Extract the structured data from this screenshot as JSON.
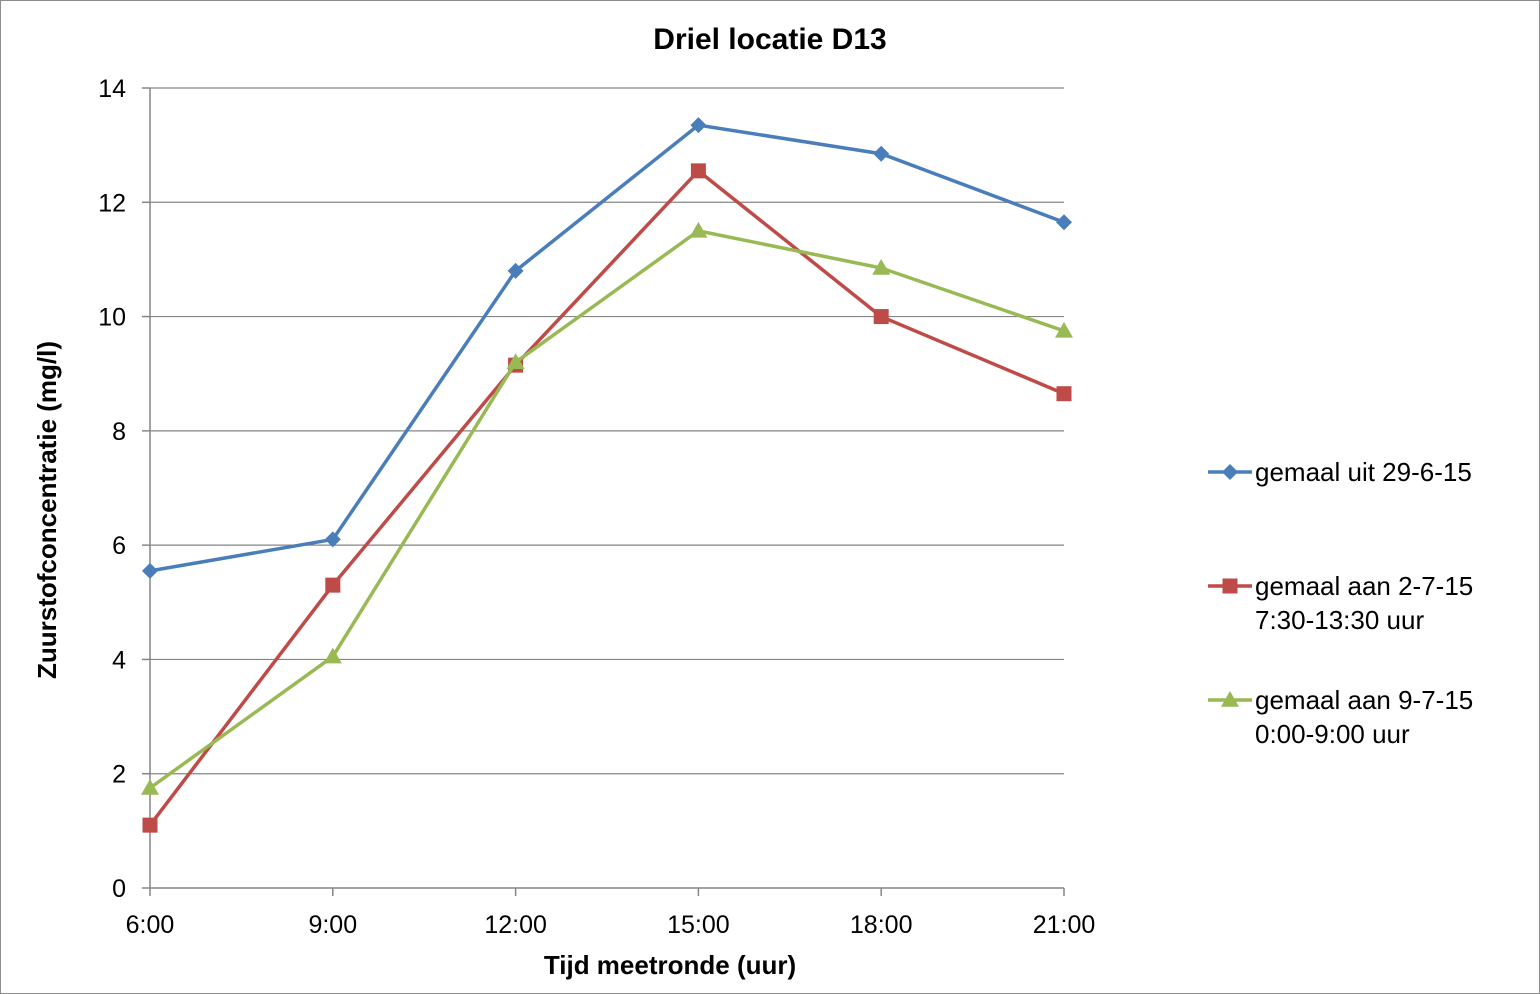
{
  "chart_data": {
    "type": "line",
    "title": "Driel locatie D13",
    "xlabel": "Tijd meetronde (uur)",
    "ylabel": "Zuurstofconcentratie (mg/l)",
    "categories": [
      "6:00",
      "9:00",
      "12:00",
      "15:00",
      "18:00",
      "21:00"
    ],
    "ylim": [
      0,
      14
    ],
    "yticks": [
      0,
      2,
      4,
      6,
      8,
      10,
      12,
      14
    ],
    "grid": "horizontal",
    "legend_position": "right",
    "series": [
      {
        "name_lines": [
          "gemaal uit 29-6-15"
        ],
        "values": [
          5.55,
          6.1,
          10.8,
          13.35,
          12.85,
          11.65
        ],
        "color": "#4a7ebb",
        "marker": "diamond"
      },
      {
        "name_lines": [
          "gemaal aan 2-7-15",
          "7:30-13:30 uur"
        ],
        "values": [
          1.1,
          5.3,
          9.15,
          12.55,
          10.0,
          8.65
        ],
        "color": "#be4b48",
        "marker": "square"
      },
      {
        "name_lines": [
          "gemaal aan 9-7-15",
          "0:00-9:00 uur"
        ],
        "values": [
          1.75,
          4.05,
          9.2,
          11.5,
          10.85,
          9.75
        ],
        "color": "#98b954",
        "marker": "triangle"
      }
    ]
  }
}
